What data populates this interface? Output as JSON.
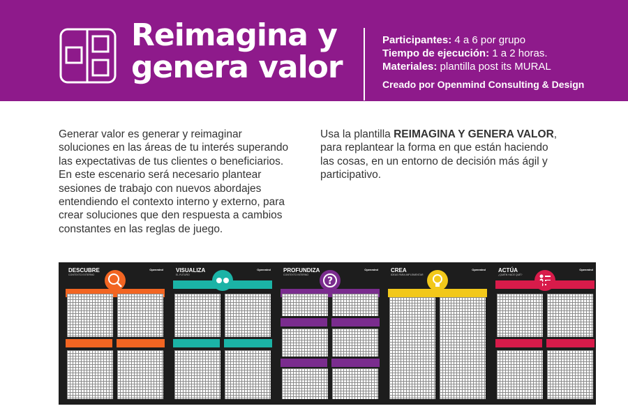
{
  "header": {
    "title_line1": "Reimagina y",
    "title_line2": "genera valor",
    "participants_label": "Participantes:",
    "participants_value": "4 a 6 por grupo",
    "time_label": "Tiempo de ejecución:",
    "time_value": "1 a 2 horas.",
    "materials_label": "Materiales:",
    "materials_value": "plantilla  post its  MURAL",
    "credit": "Creado por Openmind Consulting & Design",
    "bg_color": "#8e1a8b"
  },
  "intro": {
    "paragraph1": "Generar valor es generar y reimaginar soluciones en las áreas de tu interés superando las expectativas de tus clientes o beneficiarios. En este escenario será necesario plantear sesiones de trabajo con nuevos abordajes entendiendo el contexto interno y externo, para crear soluciones que den respuesta a cambios constantes en las reglas de juego.",
    "paragraph2_prefix": "Usa la plantilla ",
    "paragraph2_bold": "REIMAGINA Y GENERA VALOR",
    "paragraph2_suffix": ", para replantear la forma en que están haciendo las cosas, en un entorno de decisión más ágil y participativo."
  },
  "template": {
    "brand": "Openmind",
    "panels": [
      {
        "title": "DESCUBRE",
        "subtitle": "CONTEXTO EXTERNO",
        "color": "#f26522",
        "icon": "magnifier-icon"
      },
      {
        "title": "VISUALIZA",
        "subtitle": "EL FUTURO",
        "color": "#1bb3a6",
        "icon": "eyes-icon"
      },
      {
        "title": "PROFUNDIZA",
        "subtitle": "CONTEXTO INTERNO",
        "color": "#7a2c8e",
        "icon": "question-icon"
      },
      {
        "title": "CREA",
        "subtitle": "IDEAS PARA IMPLEMENTAR",
        "color": "#f2c81a",
        "icon": "lightbulb-icon"
      },
      {
        "title": "ACTÚA",
        "subtitle": "¿QUIÉN HACE QUÉ?",
        "color": "#d81b4a",
        "icon": "numbered-list-icon"
      }
    ]
  }
}
